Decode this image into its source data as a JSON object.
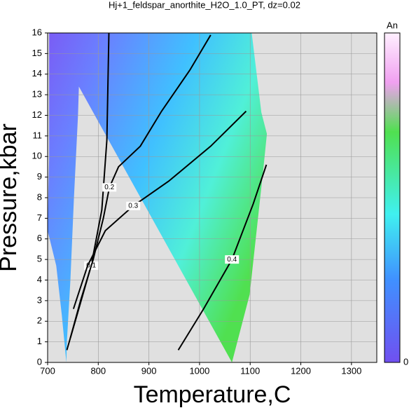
{
  "chart_data": {
    "type": "contour",
    "title": "Hj+1_feldspar_anorthite_H2O_1.0_PT, dz=0.02",
    "x_label": "Temperature,C",
    "y_label": "Pressure,kbar",
    "xlim": [
      700,
      1350
    ],
    "ylim": [
      0,
      16
    ],
    "xticks": [
      700,
      800,
      900,
      1000,
      1100,
      1200,
      1300
    ],
    "yticks": [
      0,
      1,
      2,
      3,
      4,
      5,
      6,
      7,
      8,
      9,
      10,
      11,
      12,
      13,
      14,
      15,
      16
    ],
    "grid": true,
    "colorbar_label": "An",
    "colorbar_min": 0,
    "field": {
      "x": [
        703,
        765,
        760,
        752,
        745,
        738,
        737,
        728,
        717,
        700,
        703,
        703,
        1103,
        1122,
        1133,
        1126,
        1099,
        1064
      ],
      "y": [
        16,
        16,
        12,
        8,
        4,
        1,
        0,
        2.3,
        4.7,
        6.4,
        10,
        16,
        16,
        12.15,
        11.1,
        9.4,
        3.3,
        0
      ]
    },
    "contours": [
      {
        "level": 0.1,
        "x": [
          821,
          817,
          807,
          786,
          758,
          738
        ],
        "y": [
          16,
          10.8,
          7.4,
          4.7,
          2.3,
          0.6
        ]
      },
      {
        "level": 0.2,
        "x": [
          1022,
          981,
          925,
          883,
          840,
          822,
          810,
          790,
          765,
          745
        ],
        "y": [
          15.9,
          14.2,
          12.2,
          10.5,
          9.5,
          8.5,
          7,
          5,
          3,
          1.2
        ]
      },
      {
        "level": 0.3,
        "x": [
          1092,
          1022,
          939,
          869,
          814,
          779,
          751
        ],
        "y": [
          12.2,
          10.5,
          8.8,
          7.6,
          6.4,
          4.7,
          2.6
        ]
      },
      {
        "level": 0.4,
        "x": [
          1132,
          1106,
          1064,
          1008,
          958
        ],
        "y": [
          9.6,
          7.7,
          5,
          2.6,
          0.6
        ]
      }
    ]
  }
}
